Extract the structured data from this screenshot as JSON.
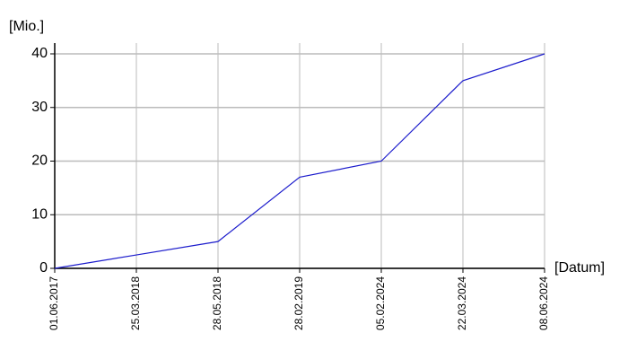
{
  "chart_data": {
    "type": "line",
    "y_label": "[Mio.]",
    "x_label": "[Datum]",
    "categories": [
      "01.06.2017",
      "25.03.2018",
      "28.05.2018",
      "28.02.2019",
      "05.02.2024",
      "22.03.2024",
      "08.06.2024"
    ],
    "series": [
      {
        "color": "#1c1ccc",
        "values": [
          0,
          2.5,
          5,
          17,
          20,
          35,
          40
        ]
      }
    ],
    "ylim": [
      0,
      40
    ],
    "yticks": [
      0,
      10,
      20,
      30,
      40
    ],
    "grid": true
  }
}
